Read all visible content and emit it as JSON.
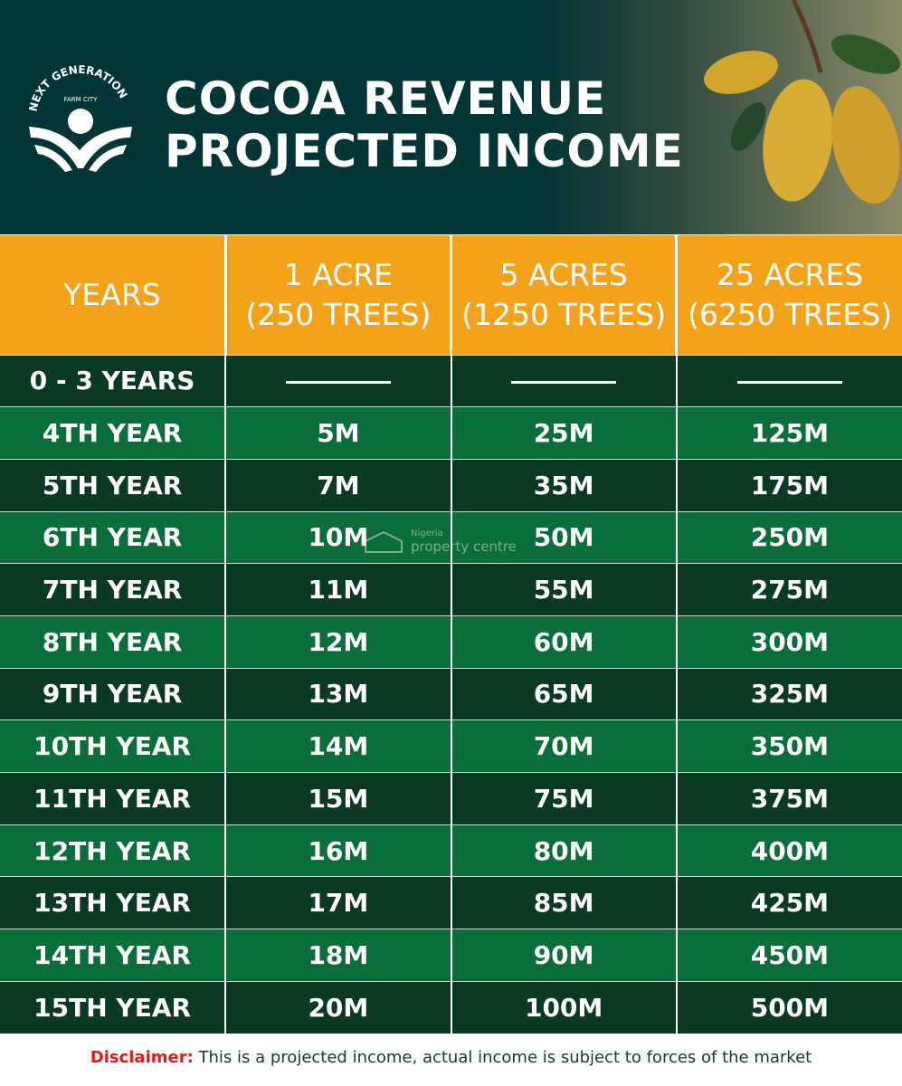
{
  "header": {
    "logo_text": "NEXT GENERATION",
    "logo_sub": "FARM CITY",
    "title_line1": "COCOA REVENUE",
    "title_line2": "PROJECTED INCOME"
  },
  "table": {
    "columns": [
      {
        "line1": "YEARS",
        "line2": ""
      },
      {
        "line1": "1 ACRE",
        "line2": "(250 TREES)"
      },
      {
        "line1": "5 ACRES",
        "line2": "(1250 TREES)"
      },
      {
        "line1": "25 ACRES",
        "line2": "(6250 TREES)"
      }
    ],
    "rows": [
      [
        "0 - 3 YEARS",
        "—",
        "—",
        "—"
      ],
      [
        "4TH YEAR",
        "5M",
        "25M",
        "125M"
      ],
      [
        "5TH YEAR",
        "7M",
        "35M",
        "175M"
      ],
      [
        "6TH YEAR",
        "10M",
        "50M",
        "250M"
      ],
      [
        "7TH YEAR",
        "11M",
        "55M",
        "275M"
      ],
      [
        "8TH YEAR",
        "12M",
        "60M",
        "300M"
      ],
      [
        "9TH YEAR",
        "13M",
        "65M",
        "325M"
      ],
      [
        "10TH YEAR",
        "14M",
        "70M",
        "350M"
      ],
      [
        "11TH YEAR",
        "15M",
        "75M",
        "375M"
      ],
      [
        "12TH YEAR",
        "16M",
        "80M",
        "400M"
      ],
      [
        "13TH YEAR",
        "17M",
        "85M",
        "425M"
      ],
      [
        "14TH YEAR",
        "18M",
        "90M",
        "450M"
      ],
      [
        "15TH YEAR",
        "20M",
        "100M",
        "500M"
      ]
    ]
  },
  "watermark": {
    "line1": "Nigeria",
    "line2": "property centre"
  },
  "disclaimer": {
    "label": "Disclaimer:",
    "text": " This is a projected income, actual income is subject to forces of the market"
  },
  "colors": {
    "header_bg": "#033436",
    "orange": "#f5a21b",
    "dark_row": "#0b3a22",
    "green_row": "#0a6e3a",
    "disclaimer_label": "#e01b1b"
  }
}
